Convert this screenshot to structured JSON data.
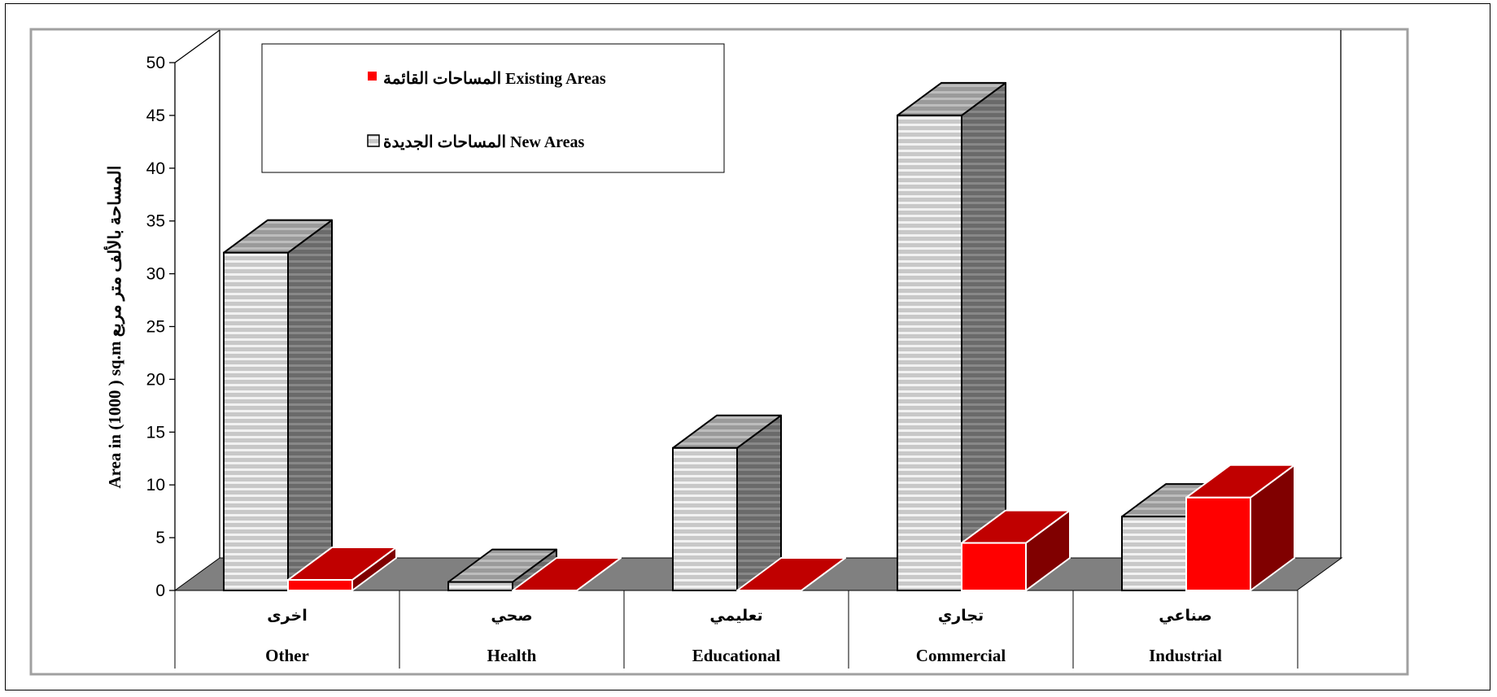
{
  "chart_data": {
    "type": "bar",
    "style": "3d-clustered-column",
    "categories": [
      {
        "ar": "اخرى",
        "en": "Other"
      },
      {
        "ar": "صحي",
        "en": "Health"
      },
      {
        "ar": "تعليمي",
        "en": "Educational"
      },
      {
        "ar": "تجاري",
        "en": "Commercial"
      },
      {
        "ar": "صناعي",
        "en": "Industrial"
      }
    ],
    "series": [
      {
        "key": "new",
        "name": "المساحات  الجديدة New Areas",
        "color": "#c8c8c8",
        "values": [
          32,
          0.8,
          13.5,
          45,
          7
        ]
      },
      {
        "key": "existing",
        "name": "المساحات  القائمة Existing Areas",
        "color": "#ff0000",
        "values": [
          1,
          0,
          0,
          4.5,
          8.8
        ]
      }
    ],
    "ylabel": "Area in (1000 ) sq.m   المساحة بالألف متر مربع",
    "ylim": [
      0,
      50
    ],
    "yticks": [
      0,
      5,
      10,
      15,
      20,
      25,
      30,
      35,
      40,
      45,
      50
    ],
    "legend_position": "top-left",
    "colors": {
      "floor": "#808080",
      "plot_border": "#a0a0a0",
      "existing_front": "#ff0000",
      "existing_top": "#c00000",
      "existing_side": "#800000",
      "new_front": "#c8c8c8",
      "new_top": "#9a9a9a",
      "new_side": "#707070"
    }
  }
}
